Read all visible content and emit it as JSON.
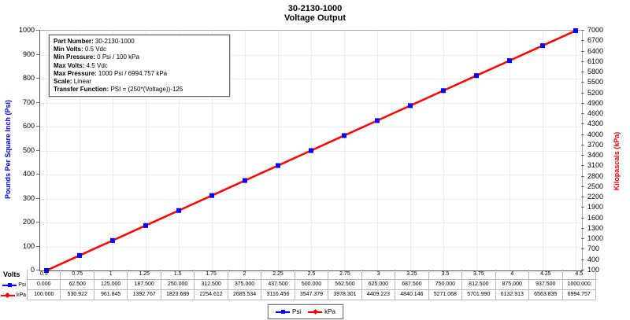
{
  "title": {
    "line1": "30-2130-1000",
    "line2": "Voltage Output"
  },
  "info_box": {
    "lines": [
      {
        "label": "Part Number",
        "value": "30-2130-1000"
      },
      {
        "label": "Min Volts",
        "value": "0.5 Vdc"
      },
      {
        "label": "Min Pressure",
        "value": "0 Psi / 100 kPa"
      },
      {
        "label": "Max Volts",
        "value": "4.5 Vdc"
      },
      {
        "label": "Max Pressure",
        "value": "1000 Psi / 6994.757 kPa"
      },
      {
        "label": "Scale",
        "value": "Linear"
      },
      {
        "label": "Transfer Function",
        "value": "PSI = (250*(Voltage))-125"
      }
    ]
  },
  "axes": {
    "left": {
      "title": "Pounds Per Square Inch (Psi)",
      "color": "#0000ff",
      "ticks_top_down": [
        "1000",
        "900",
        "800",
        "700",
        "600",
        "500",
        "400",
        "300",
        "200",
        "100",
        "0"
      ]
    },
    "right": {
      "title": "Kilopascals (kPa)",
      "color": "#ff0000",
      "ticks_top_down": [
        "7000",
        "6700",
        "6400",
        "6100",
        "5800",
        "5500",
        "5200",
        "4900",
        "4600",
        "4300",
        "4000",
        "3700",
        "3400",
        "3100",
        "2800",
        "2500",
        "2200",
        "1900",
        "1600",
        "1300",
        "1000",
        "700",
        "400",
        "100"
      ]
    },
    "x": {
      "label": "Volts"
    }
  },
  "table": {
    "x_label": "Volts",
    "volts": [
      "0.5",
      "0.75",
      "1",
      "1.25",
      "1.5",
      "1.75",
      "2",
      "2.25",
      "2.5",
      "2.75",
      "3",
      "3.25",
      "3.5",
      "3.75",
      "4",
      "4.25",
      "4.5"
    ],
    "rows": [
      {
        "name": "Psi",
        "color": "#0000ff",
        "marker": "square",
        "values": [
          "0.000",
          "62.500",
          "125.000",
          "187.500",
          "250.000",
          "312.500",
          "375.000",
          "437.500",
          "500.000",
          "562.500",
          "625.000",
          "687.500",
          "750.000",
          "812.500",
          "875.000",
          "937.500",
          "1000.000"
        ]
      },
      {
        "name": "kPa",
        "color": "#ff0000",
        "marker": "diamond",
        "values": [
          "100.000",
          "530.922",
          "961.845",
          "1392.767",
          "1823.689",
          "2254.612",
          "2685.534",
          "3116.456",
          "3547.379",
          "3978.301",
          "4409.223",
          "4840.146",
          "5271.068",
          "5701.990",
          "6132.913",
          "6563.835",
          "6994.757"
        ]
      }
    ]
  },
  "legend": [
    {
      "label": "Psi",
      "color": "#0000ff",
      "marker": "square"
    },
    {
      "label": "kPa",
      "color": "#ff0000",
      "marker": "diamond"
    }
  ],
  "chart_data": {
    "type": "line",
    "title": "30-2130-1000 Voltage Output",
    "xlabel": "Volts",
    "x": [
      0.5,
      0.75,
      1,
      1.25,
      1.5,
      1.75,
      2,
      2.25,
      2.5,
      2.75,
      3,
      3.25,
      3.5,
      3.75,
      4,
      4.25,
      4.5
    ],
    "series": [
      {
        "name": "Psi",
        "axis": "left",
        "color": "#0000ff",
        "marker": "square",
        "values": [
          0,
          62.5,
          125,
          187.5,
          250,
          312.5,
          375,
          437.5,
          500,
          562.5,
          625,
          687.5,
          750,
          812.5,
          875,
          937.5,
          1000
        ]
      },
      {
        "name": "kPa",
        "axis": "right",
        "color": "#ff0000",
        "marker": "diamond",
        "values": [
          100,
          530.922,
          961.845,
          1392.767,
          1823.689,
          2254.612,
          2685.534,
          3116.456,
          3547.379,
          3978.301,
          4409.223,
          4840.146,
          5271.068,
          5701.99,
          6132.913,
          6563.835,
          6994.757
        ]
      }
    ],
    "left_axis": {
      "label": "Pounds Per Square Inch (Psi)",
      "min": 0,
      "max": 1000,
      "step": 100
    },
    "right_axis": {
      "label": "Kilopascals (kPa)",
      "min": 100,
      "max": 7000,
      "step": 300
    },
    "grid": true,
    "legend_position": "bottom"
  }
}
